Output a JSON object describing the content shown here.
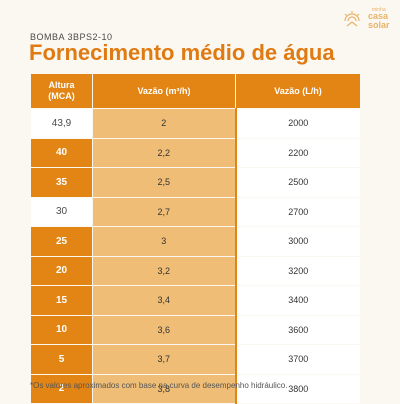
{
  "header": {
    "subtitle": "BOMBA 3BPS2-10",
    "title": "Fornecimento médio de água"
  },
  "logo": {
    "small_text": "minha",
    "line1": "casa",
    "line2": "solar",
    "color": "#e8b26a"
  },
  "table": {
    "headers": [
      "Altura\n(MCA)",
      "Vazão (m³/h)",
      "Vazão (L/h)"
    ],
    "header_line1": "Altura",
    "header_line2": "(MCA)",
    "rows": [
      {
        "altura": "43,9",
        "m3h": "2",
        "lh": "2000"
      },
      {
        "altura": "40",
        "m3h": "2,2",
        "lh": "2200"
      },
      {
        "altura": "35",
        "m3h": "2,5",
        "lh": "2500"
      },
      {
        "altura": "30",
        "m3h": "2,7",
        "lh": "2700"
      },
      {
        "altura": "25",
        "m3h": "3",
        "lh": "3000"
      },
      {
        "altura": "20",
        "m3h": "3,2",
        "lh": "3200"
      },
      {
        "altura": "15",
        "m3h": "3,4",
        "lh": "3400"
      },
      {
        "altura": "10",
        "m3h": "3,6",
        "lh": "3600"
      },
      {
        "altura": "5",
        "m3h": "3,7",
        "lh": "3700"
      },
      {
        "altura": "2",
        "m3h": "3,8",
        "lh": "3800"
      }
    ]
  },
  "footnote": "*Os valores aproximados com base na curva de desempenho hidráulico.",
  "colors": {
    "accent": "#e38514",
    "light_accent": "#efbd76",
    "background": "#fbf8f1"
  }
}
